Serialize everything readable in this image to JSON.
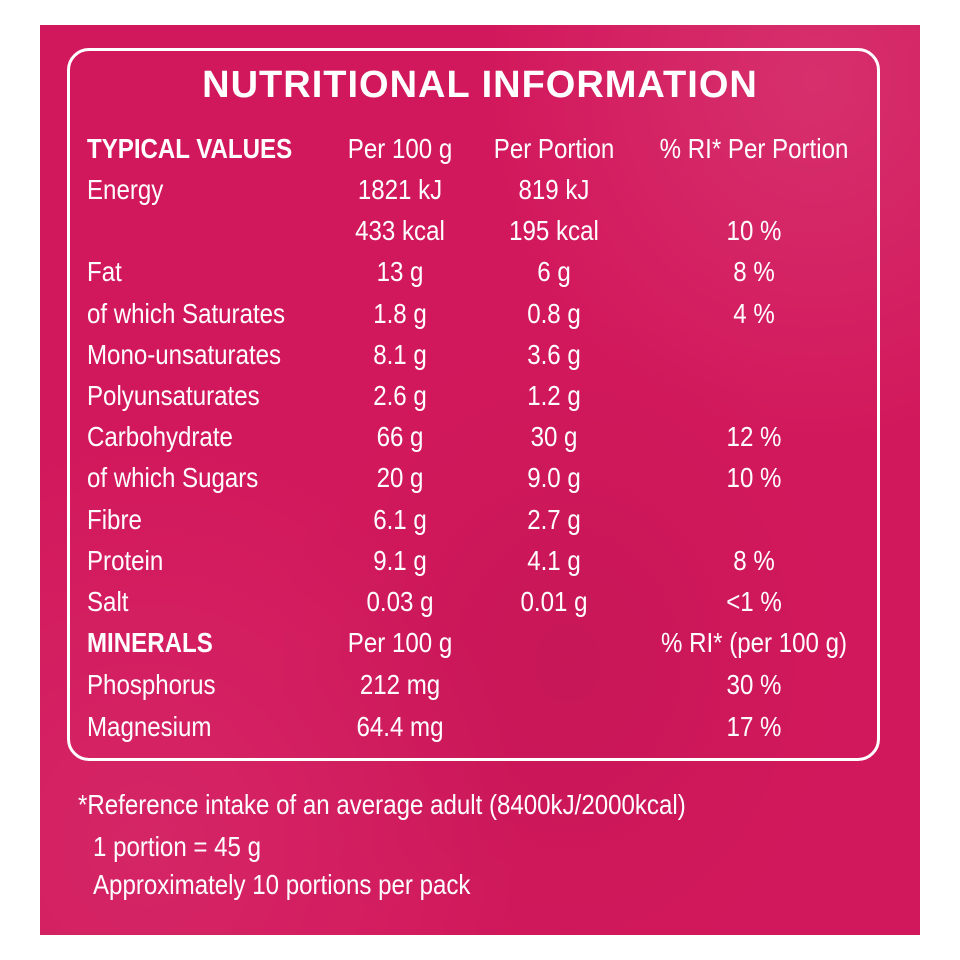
{
  "title": "NUTRITIONAL INFORMATION",
  "header": {
    "typical_values": "TYPICAL VALUES",
    "per_100g": "Per 100 g",
    "per_portion": "Per Portion",
    "ri_per_portion": "% RI* Per Portion"
  },
  "rows": [
    {
      "label": "Energy",
      "per100": "1821 kJ",
      "portion": "819 kJ",
      "ri": ""
    },
    {
      "label": "",
      "per100": "433 kcal",
      "portion": "195 kcal",
      "ri": "10 %"
    },
    {
      "label": "Fat",
      "per100": "13 g",
      "portion": "6 g",
      "ri": "8 %"
    },
    {
      "label": "of which Saturates",
      "per100": "1.8 g",
      "portion": "0.8 g",
      "ri": "4 %"
    },
    {
      "label": "Mono-unsaturates",
      "per100": "8.1 g",
      "portion": "3.6 g",
      "ri": ""
    },
    {
      "label": "Polyunsaturates",
      "per100": "2.6 g",
      "portion": "1.2 g",
      "ri": ""
    },
    {
      "label": "Carbohydrate",
      "per100": "66 g",
      "portion": "30 g",
      "ri": "12 %"
    },
    {
      "label": "of which Sugars",
      "per100": "20 g",
      "portion": "9.0 g",
      "ri": "10 %"
    },
    {
      "label": "Fibre",
      "per100": "6.1 g",
      "portion": "2.7 g",
      "ri": ""
    },
    {
      "label": "Protein",
      "per100": "9.1 g",
      "portion": "4.1 g",
      "ri": "8 %"
    },
    {
      "label": "Salt",
      "per100": "0.03 g",
      "portion": "0.01 g",
      "ri": "<1 %"
    }
  ],
  "minerals_header": {
    "label": "MINERALS",
    "per_100g": "Per 100 g",
    "ri": "% RI* (per 100 g)"
  },
  "minerals": [
    {
      "label": "Phosphorus",
      "per100": "212 mg",
      "ri": "30 %"
    },
    {
      "label": "Magnesium",
      "per100": "64.4 mg",
      "ri": "17 %"
    }
  ],
  "footnotes": {
    "reference": "*Reference intake of an average adult (8400kJ/2000kcal)",
    "portion": "1 portion = 45 g",
    "pack": "Approximately 10 portions per pack"
  },
  "colors": {
    "background": "#d2185c",
    "text": "#ffffff"
  }
}
